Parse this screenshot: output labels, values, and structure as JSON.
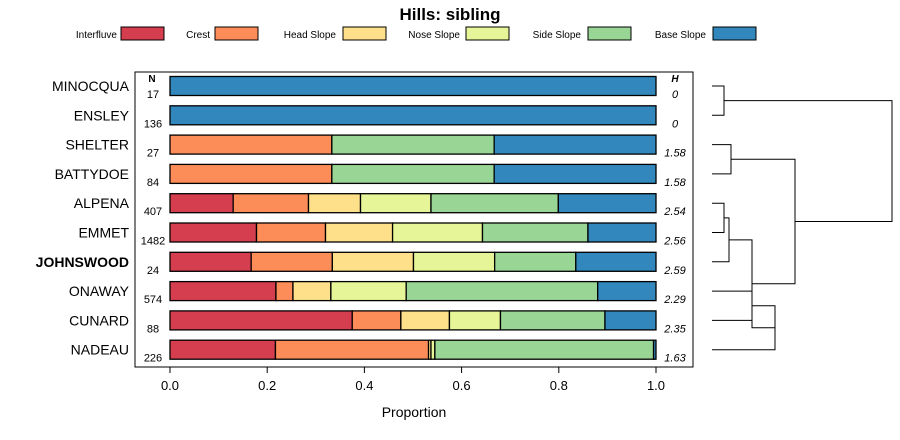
{
  "chart_data": {
    "type": "bar",
    "orientation": "horizontal",
    "stacked": true,
    "title": "Hills: sibling",
    "xlabel": "Proportion",
    "ylabel": "",
    "xlim": [
      0,
      1
    ],
    "x_ticks": [
      "0.0",
      "0.2",
      "0.4",
      "0.6",
      "0.8",
      "1.0"
    ],
    "n_header": "N",
    "h_header": "H",
    "legend_position": "top",
    "highlight_category": "JOHNSWOOD",
    "categories": [
      "MINOCQUA",
      "ENSLEY",
      "SHELTER",
      "BATTYDOE",
      "ALPENA",
      "EMMET",
      "JOHNSWOOD",
      "ONAWAY",
      "CUNARD",
      "NADEAU"
    ],
    "n": [
      "17",
      "136",
      "27",
      "84",
      "407",
      "1482",
      "24",
      "574",
      "88",
      "226"
    ],
    "h": [
      "0",
      "0",
      "1.58",
      "1.58",
      "2.54",
      "2.56",
      "2.59",
      "2.29",
      "2.35",
      "1.63"
    ],
    "series": [
      {
        "name": "Interfluve",
        "color": "#d53e4f",
        "values": [
          0,
          0,
          0,
          0,
          0.13,
          0.178,
          0.167,
          0.218,
          0.375,
          0.217
        ]
      },
      {
        "name": "Crest",
        "color": "#fc8d59",
        "values": [
          0,
          0,
          0.333,
          0.333,
          0.155,
          0.142,
          0.167,
          0.035,
          0.1,
          0.315
        ]
      },
      {
        "name": "Head Slope",
        "color": "#fee08b",
        "values": [
          0,
          0,
          0,
          0,
          0.107,
          0.138,
          0.167,
          0.078,
          0.1,
          0.005
        ]
      },
      {
        "name": "Nose Slope",
        "color": "#e6f598",
        "values": [
          0,
          0,
          0,
          0,
          0.145,
          0.185,
          0.167,
          0.155,
          0.105,
          0.008
        ]
      },
      {
        "name": "Side Slope",
        "color": "#99d594",
        "values": [
          0,
          0,
          0.334,
          0.334,
          0.262,
          0.217,
          0.167,
          0.394,
          0.215,
          0.45
        ]
      },
      {
        "name": "Base Slope",
        "color": "#3288bd",
        "values": [
          1,
          1,
          0.333,
          0.333,
          0.201,
          0.14,
          0.165,
          0.12,
          0.105,
          0.005
        ]
      }
    ]
  }
}
